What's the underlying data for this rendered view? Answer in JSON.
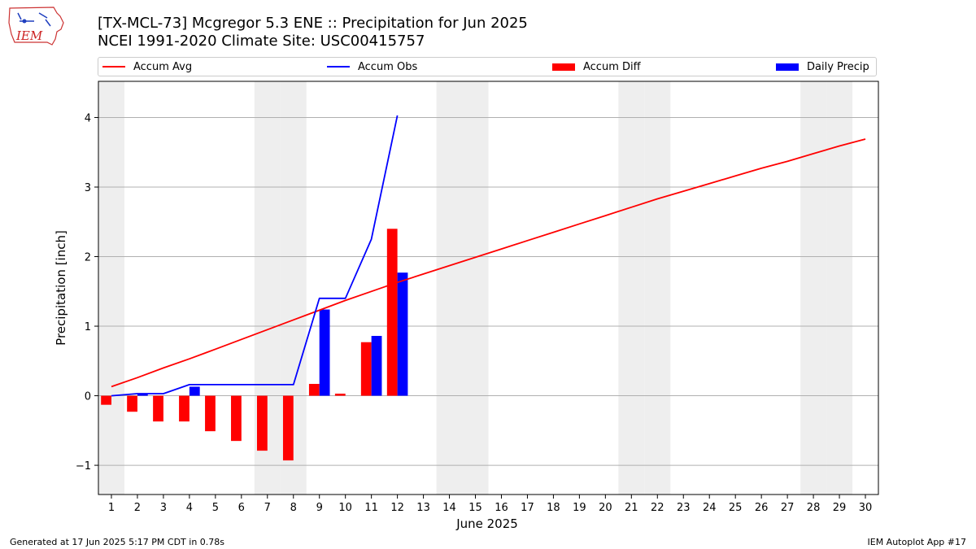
{
  "header": {
    "title_line1": "[TX-MCL-73] Mcgregor 5.3 ENE :: Precipitation for Jun 2025",
    "title_line2": "NCEI 1991-2020 Climate Site: USC00415757",
    "logo_text": "IEM"
  },
  "footer": {
    "left": "Generated at 17 Jun 2025 5:17 PM CDT in 0.78s",
    "right": "IEM Autoplot App #17"
  },
  "colors": {
    "avg": "#ff0000",
    "obs": "#0000ff",
    "diff": "#ff0000",
    "daily": "#0000ff",
    "weekend_shade": "#eeeeee",
    "grid": "#b0b0b0"
  },
  "chart_data": {
    "type": "bar",
    "xlabel": "June 2025",
    "ylabel": "Precipitation [inch]",
    "xlim": [
      0.5,
      30.5
    ],
    "ylim": [
      -1.42,
      4.52
    ],
    "yticks": [
      -1,
      0,
      1,
      2,
      3,
      4
    ],
    "ytick_labels": [
      "−1",
      "0",
      "1",
      "2",
      "3",
      "4"
    ],
    "x": [
      1,
      2,
      3,
      4,
      5,
      6,
      7,
      8,
      9,
      10,
      11,
      12,
      13,
      14,
      15,
      16,
      17,
      18,
      19,
      20,
      21,
      22,
      23,
      24,
      25,
      26,
      27,
      28,
      29,
      30
    ],
    "x_labels": [
      "1",
      "2",
      "3",
      "4",
      "5",
      "6",
      "7",
      "8",
      "9",
      "10",
      "11",
      "12",
      "13",
      "14",
      "15",
      "16",
      "17",
      "18",
      "19",
      "20",
      "21",
      "22",
      "23",
      "24",
      "25",
      "26",
      "27",
      "28",
      "29",
      "30"
    ],
    "grid": "horizontal",
    "weekend_days": [
      1,
      7,
      8,
      14,
      15,
      21,
      22,
      28,
      29
    ],
    "legend_position": "top",
    "series": [
      {
        "name": "Accum Avg",
        "kind": "line",
        "x": [
          1,
          2,
          3,
          4,
          5,
          6,
          7,
          8,
          9,
          10,
          11,
          12,
          13,
          14,
          15,
          16,
          17,
          18,
          19,
          20,
          21,
          22,
          23,
          24,
          25,
          26,
          27,
          28,
          29,
          30
        ],
        "values": [
          0.13,
          0.26,
          0.4,
          0.53,
          0.67,
          0.81,
          0.95,
          1.09,
          1.23,
          1.37,
          1.5,
          1.63,
          1.75,
          1.87,
          1.99,
          2.11,
          2.23,
          2.35,
          2.47,
          2.59,
          2.71,
          2.83,
          2.94,
          3.05,
          3.16,
          3.27,
          3.37,
          3.48,
          3.59,
          3.69
        ]
      },
      {
        "name": "Accum Obs",
        "kind": "line",
        "x": [
          1,
          2,
          3,
          4,
          5,
          6,
          7,
          8,
          9,
          10,
          11,
          12
        ],
        "values": [
          0.0,
          0.03,
          0.03,
          0.16,
          0.16,
          0.16,
          0.16,
          0.16,
          1.4,
          1.4,
          2.25,
          4.03
        ]
      },
      {
        "name": "Accum Diff",
        "kind": "bar",
        "x": [
          1,
          2,
          3,
          4,
          5,
          6,
          7,
          8,
          9,
          10,
          11,
          12
        ],
        "values": [
          -0.13,
          -0.23,
          -0.37,
          -0.37,
          -0.51,
          -0.65,
          -0.79,
          -0.93,
          0.17,
          0.03,
          0.77,
          2.4
        ]
      },
      {
        "name": "Daily Precip",
        "kind": "bar",
        "x": [
          1,
          2,
          3,
          4,
          5,
          6,
          7,
          8,
          9,
          10,
          11,
          12
        ],
        "values": [
          0.0,
          0.03,
          0.0,
          0.13,
          0.0,
          0.0,
          0.0,
          0.0,
          1.24,
          0.0,
          0.86,
          1.77
        ]
      }
    ]
  }
}
